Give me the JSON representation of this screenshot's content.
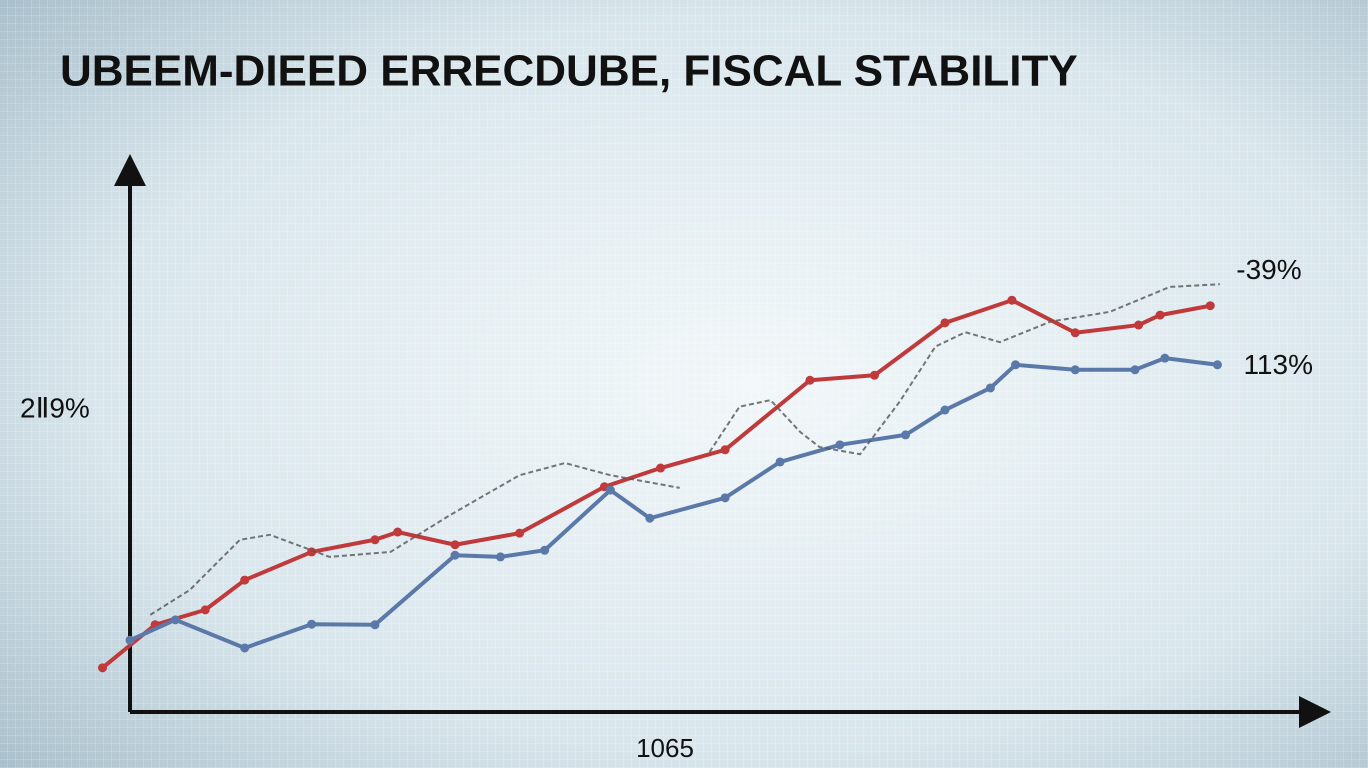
{
  "chart_data": {
    "type": "line",
    "title": "UBEEM-DIEED ERRECDUBE, FISCAL STABILITY",
    "xlabel": "1065",
    "annotations": [
      "2Ⅱ9%"
    ],
    "xlim": [
      0,
      100
    ],
    "ylim": [
      0,
      100
    ],
    "grid": false,
    "series": [
      {
        "color": "#c0393b",
        "markers": true,
        "dashed": false,
        "label": "-39%",
        "x": [
          -2.3,
          2.1,
          6.3,
          9.6,
          15.2,
          20.5,
          22.4,
          27.2,
          32.6,
          39.7,
          44.4,
          49.8,
          56.9,
          62.3,
          68.2,
          73.8,
          79.1,
          84.4,
          86.2,
          90.4
        ],
        "values": [
          8.0,
          15.8,
          18.5,
          23.9,
          29.0,
          31.2,
          32.6,
          30.3,
          32.4,
          40.8,
          44.2,
          47.5,
          60.1,
          61.0,
          70.5,
          74.6,
          68.7,
          70.1,
          71.9,
          73.6
        ]
      },
      {
        "color": "#5b79a8",
        "markers": true,
        "dashed": false,
        "label": "113%",
        "x": [
          0,
          3.8,
          9.6,
          15.2,
          20.5,
          27.2,
          31.0,
          34.7,
          40.2,
          43.5,
          49.8,
          54.4,
          59.4,
          64.9,
          68.2,
          72.0,
          74.1,
          79.1,
          84.1,
          86.6,
          91.0
        ],
        "values": [
          13.0,
          16.7,
          11.6,
          15.9,
          15.8,
          28.4,
          28.1,
          29.3,
          40.2,
          35.1,
          38.8,
          45.3,
          48.4,
          50.2,
          54.7,
          58.7,
          62.9,
          62.0,
          62.0,
          64.1,
          62.9
        ]
      },
      {
        "color": "#555555",
        "markers": false,
        "dashed": true,
        "x": [
          1.7,
          5.0,
          9.2,
          11.7,
          16.7,
          21.8,
          26.8,
          32.6,
          36.4,
          40.2,
          46.0,
          47.0,
          48.5,
          51.0,
          53.6,
          56.1,
          57.7,
          61.1,
          64.4,
          67.4,
          69.9,
          72.8,
          77.0,
          82.0,
          87.0,
          91.2
        ],
        "values": [
          17.6,
          22.1,
          31.2,
          32.1,
          28.1,
          29.0,
          35.7,
          42.9,
          45.1,
          42.9,
          40.6,
          null,
          47.1,
          55.3,
          56.5,
          50.7,
          48.0,
          46.7,
          56.2,
          66.2,
          68.8,
          67.0,
          70.7,
          72.5,
          77.0,
          77.5
        ]
      }
    ]
  }
}
